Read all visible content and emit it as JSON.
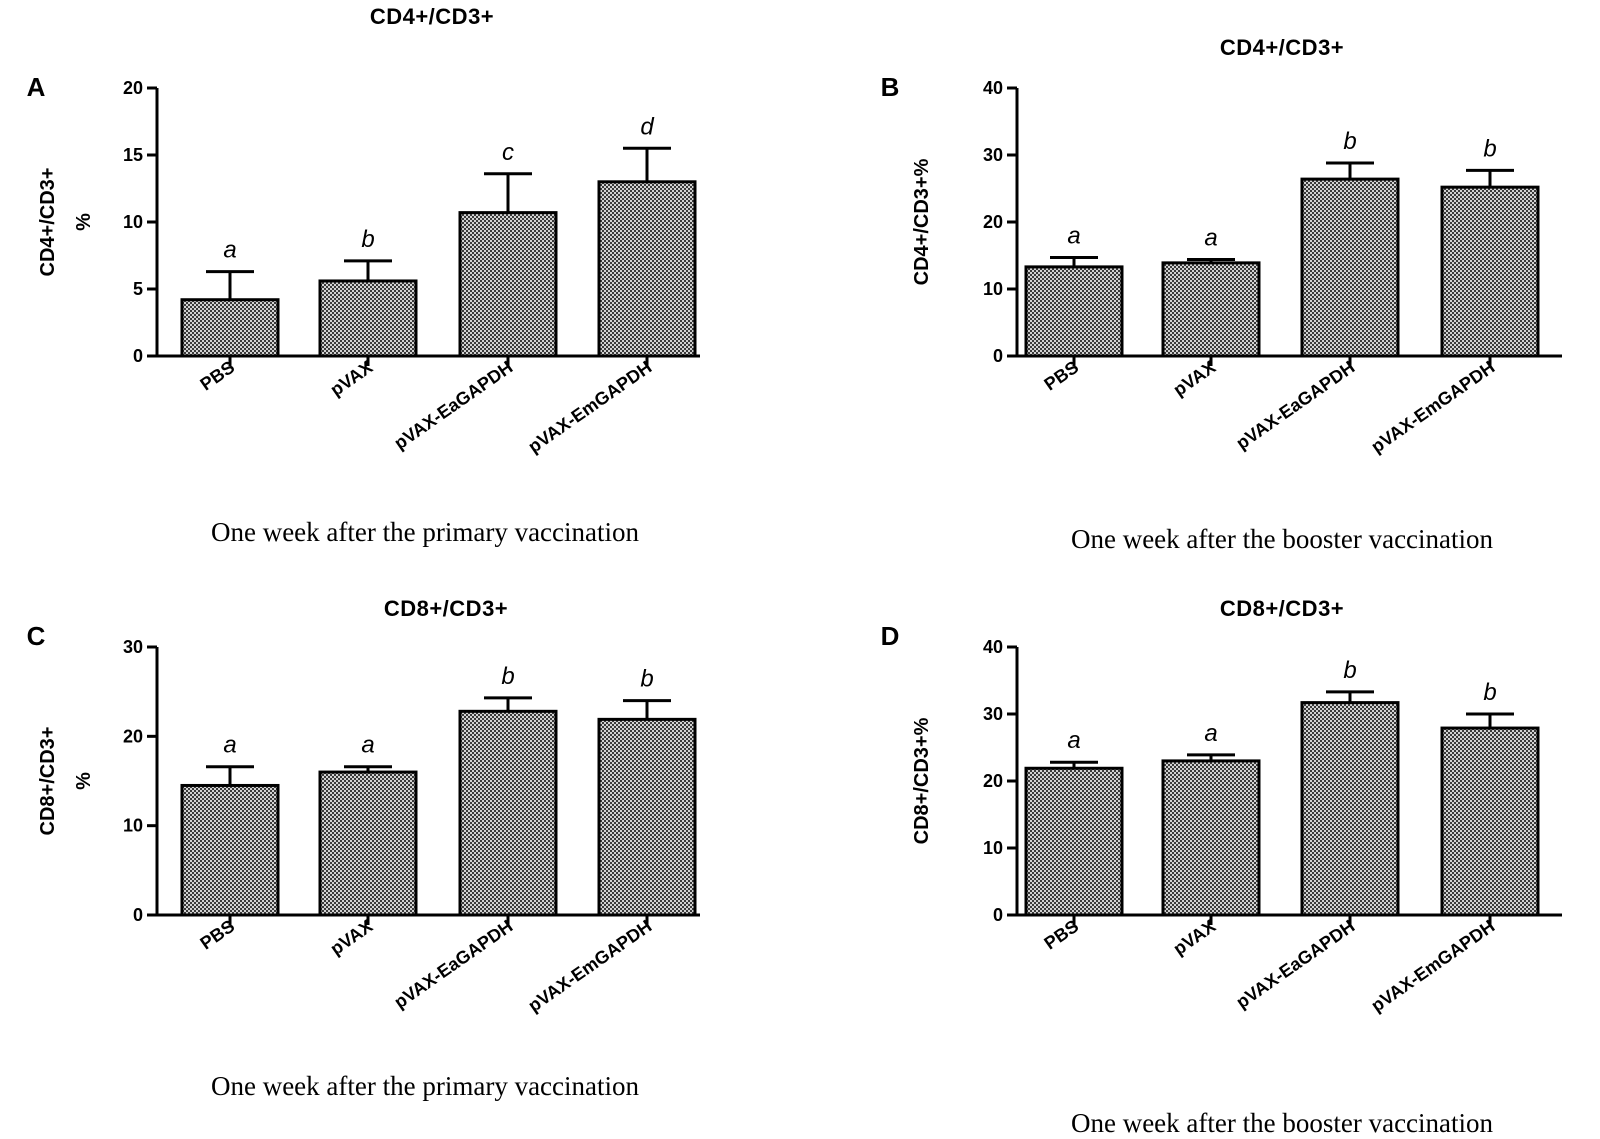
{
  "chart_data": [
    {
      "type": "bar",
      "panel": "A",
      "title": "CD4+/CD3+",
      "ylabel_lines": [
        "CD4+/CD3+",
        "%"
      ],
      "xlabel": "One week after the primary vaccination",
      "categories": [
        "PBS",
        "pVAX",
        "pVAX-EaGAPDH",
        "pVAX-EmGAPDH"
      ],
      "values": [
        4.2,
        5.6,
        10.7,
        13.0
      ],
      "errors": [
        2.1,
        1.5,
        2.9,
        2.5
      ],
      "significance": [
        "a",
        "b",
        "c",
        "d"
      ],
      "ylim": [
        0,
        20
      ],
      "yticks": [
        0,
        5,
        10,
        15,
        20
      ]
    },
    {
      "type": "bar",
      "panel": "B",
      "title": "CD4+/CD3+",
      "ylabel_lines": [
        "CD4+/CD3+%"
      ],
      "xlabel": "One week after the booster vaccination",
      "categories": [
        "PBS",
        "pVAX",
        "pVAX-EaGAPDH",
        "pVAX-EmGAPDH"
      ],
      "values": [
        13.3,
        13.9,
        26.4,
        25.2
      ],
      "errors": [
        1.4,
        0.5,
        2.4,
        2.5
      ],
      "significance": [
        "a",
        "a",
        "b",
        "b"
      ],
      "ylim": [
        0,
        40
      ],
      "yticks": [
        0,
        10,
        20,
        30,
        40
      ]
    },
    {
      "type": "bar",
      "panel": "C",
      "title": "CD8+/CD3+",
      "ylabel_lines": [
        "CD8+/CD3+",
        "%"
      ],
      "xlabel": "One week after the primary vaccination",
      "categories": [
        "PBS",
        "pVAX",
        "pVAX-EaGAPDH",
        "pVAX-EmGAPDH"
      ],
      "values": [
        14.5,
        16.0,
        22.8,
        21.9
      ],
      "errors": [
        2.1,
        0.6,
        1.5,
        2.1
      ],
      "significance": [
        "a",
        "a",
        "b",
        "b"
      ],
      "ylim": [
        0,
        30
      ],
      "yticks": [
        0,
        10,
        20,
        30
      ]
    },
    {
      "type": "bar",
      "panel": "D",
      "title": "CD8+/CD3+",
      "ylabel_lines": [
        "CD8+/CD3+%"
      ],
      "xlabel": "One week after the booster vaccination",
      "categories": [
        "PBS",
        "pVAX",
        "pVAX-EaGAPDH",
        "pVAX-EmGAPDH"
      ],
      "values": [
        21.9,
        23.0,
        31.7,
        27.9
      ],
      "errors": [
        0.9,
        0.9,
        1.6,
        2.1
      ],
      "significance": [
        "a",
        "a",
        "b",
        "b"
      ],
      "ylim": [
        0,
        40
      ],
      "yticks": [
        0,
        10,
        20,
        30,
        40
      ]
    }
  ]
}
